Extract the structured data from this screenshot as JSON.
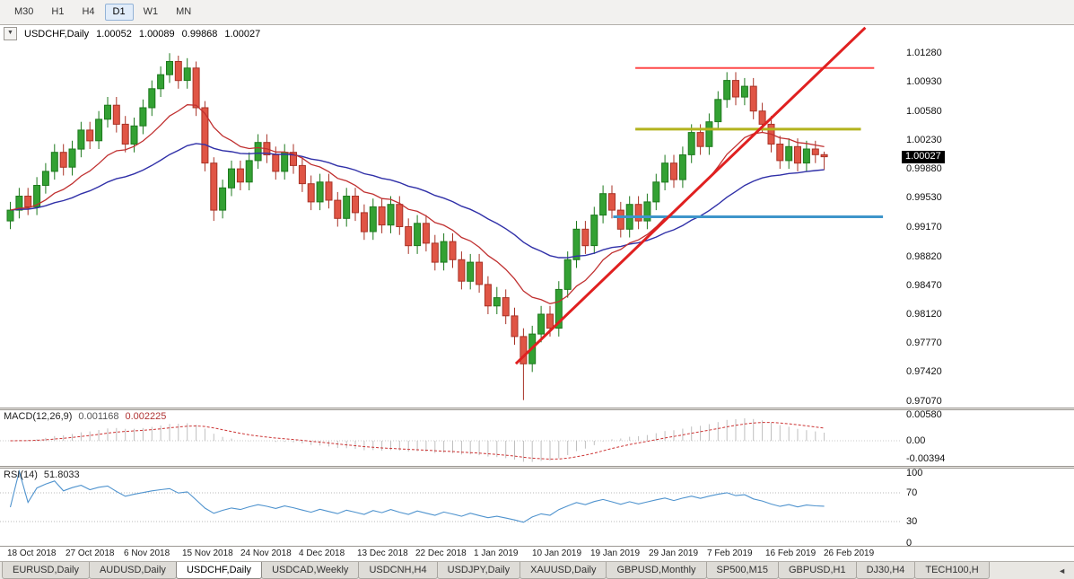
{
  "toolbar": {
    "timeframes": [
      "M30",
      "H1",
      "H4",
      "D1",
      "W1",
      "MN"
    ],
    "active_timeframe": "D1"
  },
  "chart": {
    "collapse_icon": "▼",
    "symbol_label": "USDCHF,Daily",
    "ohlc": {
      "open": "1.00052",
      "high": "1.00089",
      "low": "0.99868",
      "close": "1.00027"
    },
    "current_price": "1.00027",
    "price_axis_labels": [
      "1.01280",
      "1.00930",
      "1.00580",
      "1.00230",
      "0.99880",
      "0.99530",
      "0.99170",
      "0.98820",
      "0.98470",
      "0.98120",
      "0.97770",
      "0.97420",
      "0.97070"
    ]
  },
  "macd": {
    "label": "MACD(12,26,9)",
    "value_main": "0.001168",
    "value_signal": "0.002225",
    "axis_labels": [
      "0.00580",
      "0.00",
      "-0.00394"
    ]
  },
  "rsi": {
    "label": "RSI(14)",
    "value": "51.8033",
    "axis_labels": [
      "100",
      "70",
      "30",
      "0"
    ]
  },
  "date_axis": [
    "18 Oct 2018",
    "27 Oct 2018",
    "6 Nov 2018",
    "15 Nov 2018",
    "24 Nov 2018",
    "4 Dec 2018",
    "13 Dec 2018",
    "22 Dec 2018",
    "1 Jan 2019",
    "10 Jan 2019",
    "19 Jan 2019",
    "29 Jan 2019",
    "7 Feb 2019",
    "16 Feb 2019",
    "26 Feb 2019"
  ],
  "tabs": {
    "items": [
      "EURUSD,Daily",
      "AUDUSD,Daily",
      "USDCHF,Daily",
      "USDCAD,Weekly",
      "USDCNH,H4",
      "USDJPY,Daily",
      "XAUUSD,Daily",
      "GBPUSD,Monthly",
      "SP500,M15",
      "GBPUSD,H1",
      "DJ30,H4",
      "TECH100,H"
    ],
    "active_index": 2,
    "scroll_left_icon": "◄"
  },
  "chart_data": {
    "type": "candlestick",
    "symbol": "USDCHF",
    "timeframe": "Daily",
    "price_range": {
      "top": 1.0162,
      "bottom": 0.9699
    },
    "colors": {
      "up_fill": "#33a133",
      "up_border": "#1d791d",
      "down_fill": "#e05545",
      "down_border": "#a83226",
      "background": "#ffffff"
    },
    "candles": [
      [
        0.9925,
        0.9948,
        0.9915,
        0.9938
      ],
      [
        0.9938,
        0.9965,
        0.9928,
        0.9955
      ],
      [
        0.9955,
        0.9965,
        0.9932,
        0.9942
      ],
      [
        0.9942,
        0.9978,
        0.9932,
        0.9968
      ],
      [
        0.9968,
        0.9995,
        0.9958,
        0.9985
      ],
      [
        0.9985,
        1.0018,
        0.9975,
        1.0008
      ],
      [
        1.0008,
        1.0018,
        0.998,
        0.999
      ],
      [
        0.999,
        1.0022,
        0.998,
        1.0012
      ],
      [
        1.0012,
        1.0045,
        1.0002,
        1.0035
      ],
      [
        1.0035,
        1.0045,
        1.0012,
        1.0022
      ],
      [
        1.0022,
        1.0058,
        1.0012,
        1.0048
      ],
      [
        1.0048,
        1.0075,
        1.0038,
        1.0065
      ],
      [
        1.0065,
        1.0075,
        1.0032,
        1.0042
      ],
      [
        1.0042,
        1.0052,
        1.0008,
        1.0018
      ],
      [
        1.0018,
        1.005,
        1.0008,
        1.004
      ],
      [
        1.004,
        1.0072,
        1.003,
        1.0062
      ],
      [
        1.0062,
        1.0095,
        1.0052,
        1.0085
      ],
      [
        1.0085,
        1.0112,
        1.0075,
        1.0102
      ],
      [
        1.0102,
        1.0128,
        1.0092,
        1.0118
      ],
      [
        1.0118,
        1.0125,
        1.0085,
        1.0095
      ],
      [
        1.0095,
        1.0122,
        1.0085,
        1.011
      ],
      [
        1.011,
        1.0118,
        1.0052,
        1.0062
      ],
      [
        1.0062,
        1.007,
        0.9985,
        0.9995
      ],
      [
        0.9995,
        1.0002,
        0.9925,
        0.9938
      ],
      [
        0.9938,
        0.9975,
        0.9928,
        0.9965
      ],
      [
        0.9965,
        0.9998,
        0.9955,
        0.9988
      ],
      [
        0.9988,
        0.9998,
        0.9962,
        0.9972
      ],
      [
        0.9972,
        1.0008,
        0.9962,
        0.9998
      ],
      [
        0.9998,
        1.003,
        0.9988,
        1.002
      ],
      [
        1.002,
        1.003,
        0.9995,
        1.0005
      ],
      [
        1.0005,
        1.0015,
        0.9975,
        0.9985
      ],
      [
        0.9985,
        1.0018,
        0.9975,
        1.0008
      ],
      [
        1.0008,
        1.0018,
        0.9982,
        0.9992
      ],
      [
        0.9992,
        1.0002,
        0.996,
        0.997
      ],
      [
        0.997,
        0.998,
        0.9938,
        0.9948
      ],
      [
        0.9948,
        0.9982,
        0.9938,
        0.9972
      ],
      [
        0.9972,
        0.9982,
        0.994,
        0.995
      ],
      [
        0.995,
        0.996,
        0.9918,
        0.9928
      ],
      [
        0.9928,
        0.9965,
        0.9918,
        0.9955
      ],
      [
        0.9955,
        0.9965,
        0.9925,
        0.9935
      ],
      [
        0.9935,
        0.9945,
        0.9902,
        0.9912
      ],
      [
        0.9912,
        0.9952,
        0.9902,
        0.9942
      ],
      [
        0.9942,
        0.9952,
        0.991,
        0.992
      ],
      [
        0.992,
        0.9955,
        0.991,
        0.9945
      ],
      [
        0.9945,
        0.9955,
        0.9908,
        0.9918
      ],
      [
        0.9918,
        0.9928,
        0.9885,
        0.9895
      ],
      [
        0.9895,
        0.9932,
        0.9885,
        0.9922
      ],
      [
        0.9922,
        0.9932,
        0.9888,
        0.9898
      ],
      [
        0.9898,
        0.9908,
        0.9865,
        0.9875
      ],
      [
        0.9875,
        0.991,
        0.9865,
        0.99
      ],
      [
        0.99,
        0.991,
        0.9868,
        0.9878
      ],
      [
        0.9878,
        0.9888,
        0.9842,
        0.9852
      ],
      [
        0.9852,
        0.9885,
        0.9842,
        0.9875
      ],
      [
        0.9875,
        0.9885,
        0.9838,
        0.9848
      ],
      [
        0.9848,
        0.9858,
        0.9812,
        0.9822
      ],
      [
        0.9822,
        0.9845,
        0.9812,
        0.9832
      ],
      [
        0.9832,
        0.9842,
        0.98,
        0.981
      ],
      [
        0.981,
        0.982,
        0.9775,
        0.9785
      ],
      [
        0.9785,
        0.9795,
        0.9708,
        0.9752
      ],
      [
        0.9752,
        0.9798,
        0.9742,
        0.9788
      ],
      [
        0.9788,
        0.9822,
        0.9778,
        0.9812
      ],
      [
        0.9812,
        0.9822,
        0.9785,
        0.9795
      ],
      [
        0.9795,
        0.9852,
        0.9785,
        0.9842
      ],
      [
        0.9842,
        0.9888,
        0.9832,
        0.9878
      ],
      [
        0.9878,
        0.9925,
        0.9868,
        0.9915
      ],
      [
        0.9915,
        0.9925,
        0.9885,
        0.9895
      ],
      [
        0.9895,
        0.9942,
        0.9885,
        0.9932
      ],
      [
        0.9932,
        0.9968,
        0.9922,
        0.9958
      ],
      [
        0.9958,
        0.9968,
        0.9928,
        0.9938
      ],
      [
        0.9938,
        0.9948,
        0.9905,
        0.9915
      ],
      [
        0.9915,
        0.9955,
        0.9905,
        0.9945
      ],
      [
        0.9945,
        0.9955,
        0.9915,
        0.9925
      ],
      [
        0.9925,
        0.9958,
        0.9915,
        0.9948
      ],
      [
        0.9948,
        0.9982,
        0.9938,
        0.9972
      ],
      [
        0.9972,
        1.0005,
        0.9962,
        0.9995
      ],
      [
        0.9995,
        1.0005,
        0.9965,
        0.9975
      ],
      [
        0.9975,
        1.0015,
        0.9965,
        1.0005
      ],
      [
        1.0005,
        1.0042,
        0.9995,
        1.0032
      ],
      [
        1.0032,
        1.0042,
        1.0005,
        1.0015
      ],
      [
        1.0015,
        1.0055,
        1.0005,
        1.0045
      ],
      [
        1.0045,
        1.0082,
        1.0035,
        1.0072
      ],
      [
        1.0072,
        1.0105,
        1.0062,
        1.0095
      ],
      [
        1.0095,
        1.0105,
        1.0065,
        1.0075
      ],
      [
        1.0075,
        1.0098,
        1.0065,
        1.0088
      ],
      [
        1.0088,
        1.0098,
        1.0048,
        1.0058
      ],
      [
        1.0058,
        1.0068,
        1.0032,
        1.0042
      ],
      [
        1.0042,
        1.0052,
        1.0008,
        1.0018
      ],
      [
        1.0018,
        1.0028,
        0.9988,
        0.9998
      ],
      [
        0.9998,
        1.0025,
        0.9988,
        1.0015
      ],
      [
        1.0015,
        1.0025,
        0.9985,
        0.9995
      ],
      [
        0.9995,
        1.0022,
        0.9985,
        1.0012
      ],
      [
        1.0012,
        1.0022,
        0.9995,
        1.00052
      ],
      [
        1.00052,
        1.00089,
        0.99868,
        1.00027
      ]
    ],
    "overlays": {
      "ma_fast": {
        "kind": "ema",
        "period": 13,
        "color": "#c03030"
      },
      "ma_slow": {
        "kind": "ema",
        "period": 34,
        "color": "#3030a8"
      },
      "trend_line": {
        "color": "#e02020",
        "width": 3,
        "from": {
          "index": 57.5,
          "price": 0.9752
        },
        "to": {
          "index": 97,
          "price": 1.0159
        }
      },
      "horizontal_lines": [
        {
          "name": "resistance-red",
          "price": 1.011,
          "color": "#ff4848",
          "width": 2,
          "from_index": 71,
          "to_index": 98
        },
        {
          "name": "resistance-olive",
          "price": 1.0036,
          "color": "#b3b31e",
          "width": 3,
          "from_index": 71,
          "to_index": 96.5
        },
        {
          "name": "support-blue",
          "price": 0.993,
          "color": "#3e95ca",
          "width": 3,
          "from_index": 68.5,
          "to_index": 99
        }
      ]
    },
    "indicators": {
      "macd": {
        "fast": 12,
        "slow": 26,
        "signal": 9,
        "histogram_color": "#bfbfbf",
        "signal_color": "#cc3434",
        "pixels_per_unit": 5000,
        "last_main": 0.001168,
        "last_signal": 0.002225
      },
      "rsi": {
        "period": 14,
        "line_color": "#4f93ce",
        "levels": [
          70,
          30
        ],
        "last_value": 51.8033
      }
    }
  }
}
